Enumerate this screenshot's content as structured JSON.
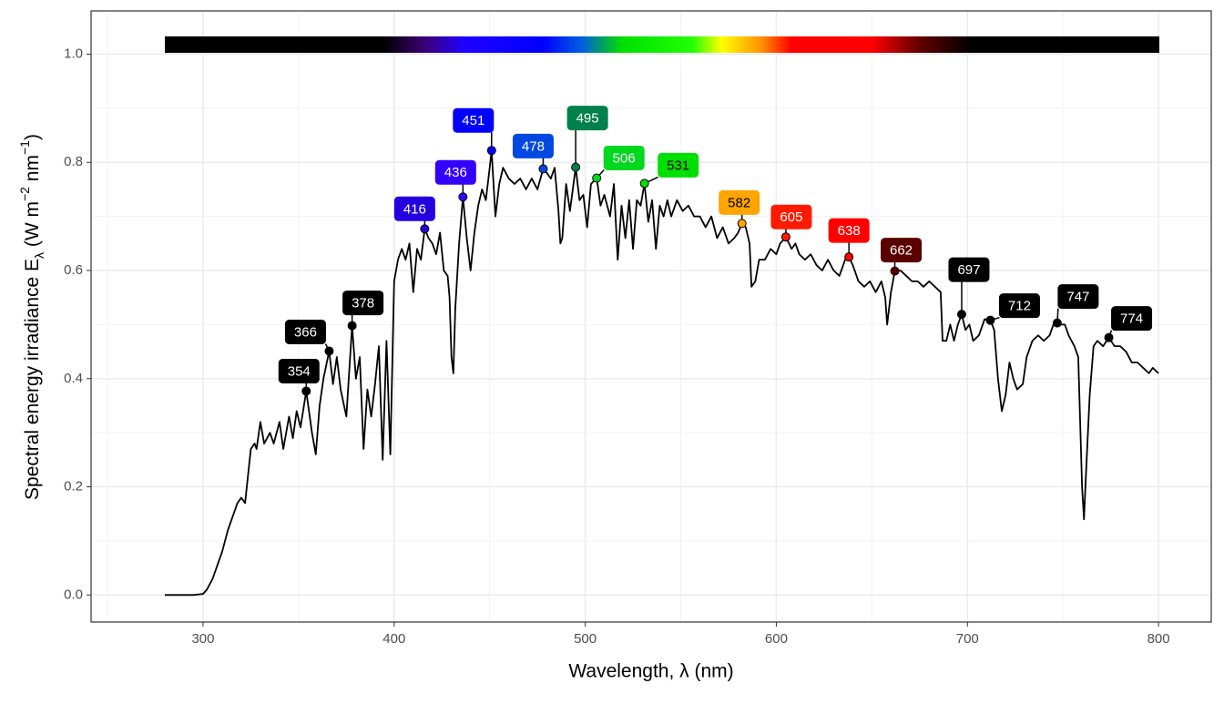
{
  "chart_data": {
    "type": "line",
    "x_label": "Wavelength, λ (nm)",
    "y_label": [
      {
        "text": "Spectral  energy  irradiance  E"
      },
      {
        "sub": "λ"
      },
      {
        "text": "  (W m"
      },
      {
        "sup": "−2"
      },
      {
        "text": " nm"
      },
      {
        "sup": "−1"
      },
      {
        "text": ")"
      }
    ],
    "xlim": [
      241.4,
      827.6
    ],
    "ylim": [
      -0.05,
      1.08
    ],
    "xticks": [
      300,
      400,
      500,
      600,
      700,
      800
    ],
    "yticks": [
      {
        "value": 0,
        "label": "0.0"
      },
      {
        "value": 0.2,
        "label": "0.2"
      },
      {
        "value": 0.4,
        "label": "0.4"
      },
      {
        "value": 0.6,
        "label": "0.6"
      },
      {
        "value": 0.8,
        "label": "0.8"
      },
      {
        "value": 1,
        "label": "1.0"
      }
    ],
    "grid": true,
    "color": "#000000",
    "x": [
      280,
      290,
      295,
      300,
      302,
      305,
      308,
      310,
      313,
      315,
      318,
      320,
      322,
      325,
      327,
      328,
      330,
      332,
      335,
      337,
      340,
      342,
      345,
      347,
      349,
      351,
      354,
      357,
      359,
      361,
      363,
      366,
      368,
      370,
      372,
      375,
      378,
      380,
      382,
      384,
      386,
      388,
      390,
      392,
      394,
      396,
      398,
      400,
      402,
      404,
      406,
      408,
      410,
      412,
      414,
      416,
      418,
      420,
      422,
      424,
      426,
      428,
      429,
      430,
      431,
      432,
      434,
      436,
      438,
      440,
      442,
      444,
      446,
      448,
      450,
      451,
      453,
      455,
      457,
      460,
      463,
      466,
      469,
      472,
      475,
      478,
      480,
      482,
      484,
      486,
      487,
      488,
      490,
      492,
      495,
      497,
      499,
      501,
      503,
      506,
      508,
      510,
      513,
      515,
      517,
      519,
      521,
      523,
      525,
      527,
      529,
      531,
      533,
      535,
      537,
      539,
      541,
      543,
      545,
      548,
      551,
      554,
      557,
      560,
      563,
      566,
      569,
      572,
      575,
      578,
      580,
      582,
      584,
      586,
      587,
      589,
      591,
      594,
      597,
      600,
      602,
      605,
      608,
      610,
      612,
      615,
      618,
      621,
      624,
      627,
      630,
      633,
      636,
      638,
      640,
      643,
      646,
      649,
      652,
      655,
      657,
      658,
      660,
      662,
      665,
      668,
      671,
      674,
      677,
      680,
      683,
      686,
      687,
      689,
      691,
      693,
      695,
      697,
      699,
      701,
      703,
      706,
      709,
      712,
      714,
      716,
      718,
      720,
      722,
      724,
      726,
      729,
      731,
      734,
      737,
      740,
      743,
      745,
      747,
      749,
      751,
      753,
      756,
      758,
      760,
      761,
      762,
      764,
      766,
      768,
      771,
      774,
      777,
      780,
      783,
      786,
      789,
      792,
      795,
      797,
      800
    ],
    "values": [
      0,
      0,
      0,
      0.002,
      0.01,
      0.03,
      0.06,
      0.08,
      0.12,
      0.14,
      0.17,
      0.18,
      0.17,
      0.27,
      0.28,
      0.27,
      0.32,
      0.28,
      0.3,
      0.28,
      0.32,
      0.27,
      0.33,
      0.29,
      0.34,
      0.31,
      0.377,
      0.3,
      0.26,
      0.35,
      0.4,
      0.451,
      0.39,
      0.44,
      0.38,
      0.33,
      0.498,
      0.4,
      0.44,
      0.27,
      0.38,
      0.33,
      0.39,
      0.46,
      0.25,
      0.47,
      0.26,
      0.58,
      0.62,
      0.64,
      0.62,
      0.65,
      0.56,
      0.64,
      0.62,
      0.677,
      0.66,
      0.65,
      0.63,
      0.67,
      0.6,
      0.59,
      0.55,
      0.44,
      0.41,
      0.53,
      0.65,
      0.736,
      0.66,
      0.6,
      0.67,
      0.72,
      0.75,
      0.73,
      0.79,
      0.822,
      0.7,
      0.76,
      0.79,
      0.77,
      0.76,
      0.77,
      0.75,
      0.77,
      0.75,
      0.788,
      0.78,
      0.77,
      0.79,
      0.71,
      0.65,
      0.66,
      0.76,
      0.71,
      0.791,
      0.73,
      0.74,
      0.68,
      0.76,
      0.771,
      0.72,
      0.74,
      0.7,
      0.76,
      0.62,
      0.72,
      0.66,
      0.73,
      0.64,
      0.73,
      0.72,
      0.761,
      0.69,
      0.73,
      0.64,
      0.72,
      0.7,
      0.73,
      0.7,
      0.73,
      0.71,
      0.72,
      0.7,
      0.7,
      0.68,
      0.7,
      0.66,
      0.68,
      0.65,
      0.66,
      0.67,
      0.687,
      0.68,
      0.65,
      0.57,
      0.58,
      0.62,
      0.62,
      0.64,
      0.63,
      0.65,
      0.662,
      0.64,
      0.65,
      0.63,
      0.62,
      0.63,
      0.61,
      0.6,
      0.62,
      0.6,
      0.59,
      0.62,
      0.625,
      0.61,
      0.58,
      0.57,
      0.58,
      0.56,
      0.58,
      0.55,
      0.5,
      0.56,
      0.599,
      0.6,
      0.59,
      0.58,
      0.58,
      0.57,
      0.58,
      0.57,
      0.56,
      0.47,
      0.47,
      0.5,
      0.47,
      0.5,
      0.519,
      0.49,
      0.5,
      0.47,
      0.48,
      0.51,
      0.508,
      0.49,
      0.4,
      0.34,
      0.37,
      0.43,
      0.4,
      0.38,
      0.39,
      0.44,
      0.47,
      0.48,
      0.47,
      0.48,
      0.5,
      0.503,
      0.5,
      0.5,
      0.48,
      0.46,
      0.44,
      0.2,
      0.14,
      0.22,
      0.37,
      0.46,
      0.47,
      0.46,
      0.476,
      0.46,
      0.46,
      0.45,
      0.43,
      0.43,
      0.42,
      0.41,
      0.42,
      0.41
    ],
    "peaks": {
      "x": [
        354,
        366,
        378,
        416,
        436,
        451,
        478,
        495,
        506,
        531,
        582,
        605,
        638,
        662,
        697,
        712,
        747,
        774
      ],
      "values": [
        0.377,
        0.451,
        0.498,
        0.677,
        0.736,
        0.822,
        0.788,
        0.791,
        0.771,
        0.761,
        0.687,
        0.662,
        0.625,
        0.599,
        0.519,
        0.508,
        0.503,
        0.476
      ],
      "colors": [
        "#000000",
        "#000000",
        "#000000",
        "#2400e0",
        "#3300ff",
        "#0000ff",
        "#0048e0",
        "#00804a",
        "#00d820",
        "#00e000",
        "#ffa500",
        "#ff1a00",
        "#ff0000",
        "#5a0000",
        "#000000",
        "#000000",
        "#000000",
        "#000000"
      ],
      "text_colors": [
        "#ffffff",
        "#ffffff",
        "#ffffff",
        "#ffffff",
        "#ffffff",
        "#ffffff",
        "#ffffff",
        "#ffffff",
        "#ffffff",
        "#000000",
        "#000000",
        "#ffffff",
        "#ffffff",
        "#ffffff",
        "#ffffff",
        "#ffffff",
        "#ffffff",
        "#ffffff"
      ]
    }
  }
}
